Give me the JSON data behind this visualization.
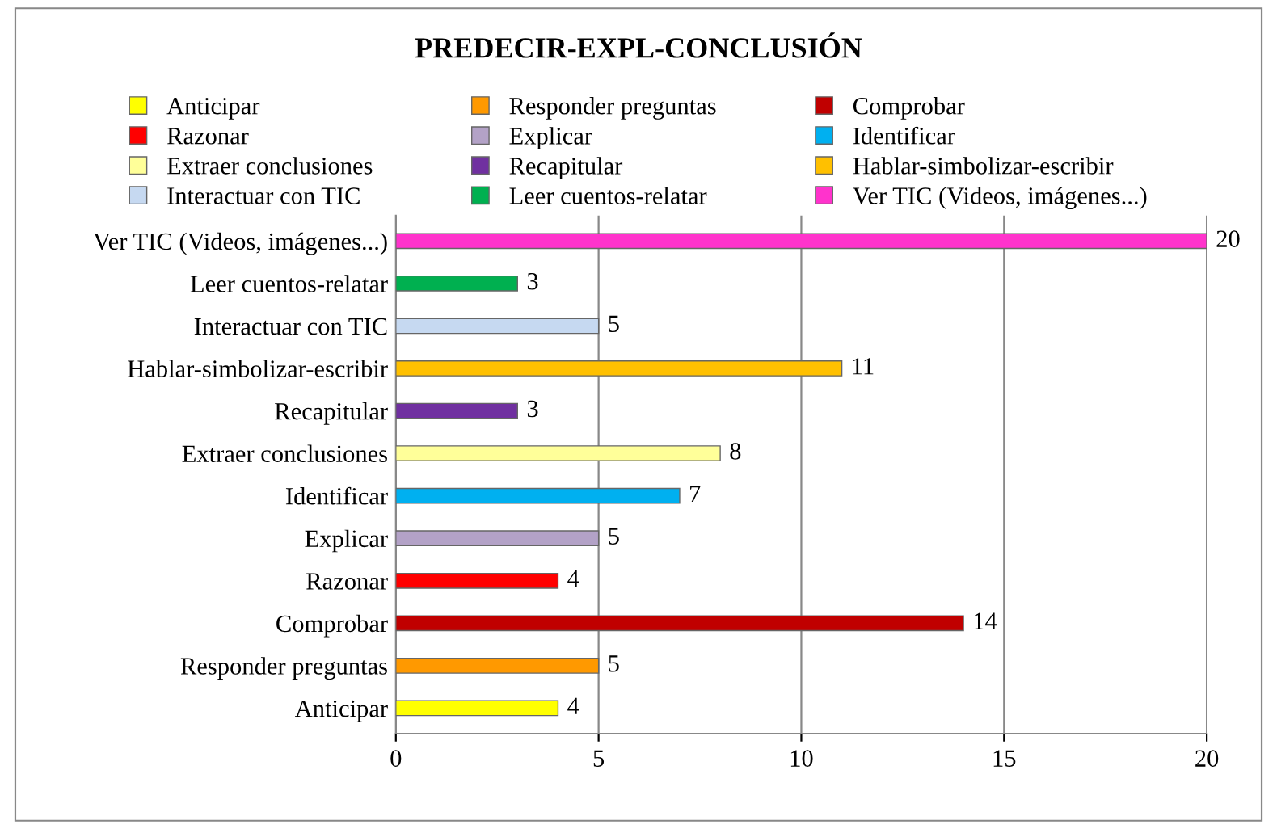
{
  "chart_data": {
    "type": "bar",
    "orientation": "horizontal",
    "title": "PREDECIR-EXPL-CONCLUSIÓN",
    "categories": [
      "Ver TIC (Videos, imágenes...)",
      "Leer cuentos-relatar",
      "Interactuar con TIC",
      "Hablar-simbolizar-escribir",
      "Recapitular",
      "Extraer conclusiones",
      "Identificar",
      "Explicar",
      "Razonar",
      "Comprobar",
      "Responder preguntas",
      "Anticipar"
    ],
    "series": [
      {
        "name": "Anticipar",
        "color": "#ffff00",
        "values": [
          null,
          null,
          null,
          null,
          null,
          null,
          null,
          null,
          null,
          null,
          null,
          4
        ]
      },
      {
        "name": "Responder preguntas",
        "color": "#ff9900",
        "values": [
          null,
          null,
          null,
          null,
          null,
          null,
          null,
          null,
          null,
          null,
          5,
          null
        ]
      },
      {
        "name": "Comprobar",
        "color": "#c00000",
        "values": [
          null,
          null,
          null,
          null,
          null,
          null,
          null,
          null,
          null,
          14,
          null,
          null
        ]
      },
      {
        "name": "Razonar",
        "color": "#ff0000",
        "values": [
          null,
          null,
          null,
          null,
          null,
          null,
          null,
          null,
          4,
          null,
          null,
          null
        ]
      },
      {
        "name": "Explicar",
        "color": "#b3a2c7",
        "values": [
          null,
          null,
          null,
          null,
          null,
          null,
          null,
          5,
          null,
          null,
          null,
          null
        ]
      },
      {
        "name": "Identificar",
        "color": "#00b0f0",
        "values": [
          null,
          null,
          null,
          null,
          null,
          null,
          7,
          null,
          null,
          null,
          null,
          null
        ]
      },
      {
        "name": "Extraer conclusiones",
        "color": "#ffff99",
        "values": [
          null,
          null,
          null,
          null,
          null,
          8,
          null,
          null,
          null,
          null,
          null,
          null
        ]
      },
      {
        "name": "Recapitular",
        "color": "#7030a0",
        "values": [
          null,
          null,
          null,
          null,
          3,
          null,
          null,
          null,
          null,
          null,
          null,
          null
        ]
      },
      {
        "name": "Hablar-simbolizar-escribir",
        "color": "#ffc000",
        "values": [
          null,
          null,
          null,
          11,
          null,
          null,
          null,
          null,
          null,
          null,
          null,
          null
        ]
      },
      {
        "name": "Interactuar con TIC",
        "color": "#c6d9f1",
        "values": [
          null,
          null,
          5,
          null,
          null,
          null,
          null,
          null,
          null,
          null,
          null,
          null
        ]
      },
      {
        "name": "Leer cuentos-relatar",
        "color": "#00b050",
        "values": [
          null,
          3,
          null,
          null,
          null,
          null,
          null,
          null,
          null,
          null,
          null,
          null
        ]
      },
      {
        "name": "Ver TIC (Videos, imágenes...)",
        "color": "#ff33cc",
        "values": [
          20,
          null,
          null,
          null,
          null,
          null,
          null,
          null,
          null,
          null,
          null,
          null
        ]
      }
    ],
    "xlim": [
      0,
      20
    ],
    "xticks": [
      0,
      5,
      10,
      15,
      20
    ],
    "grid": "x",
    "data_labels": true,
    "legend": "top"
  }
}
